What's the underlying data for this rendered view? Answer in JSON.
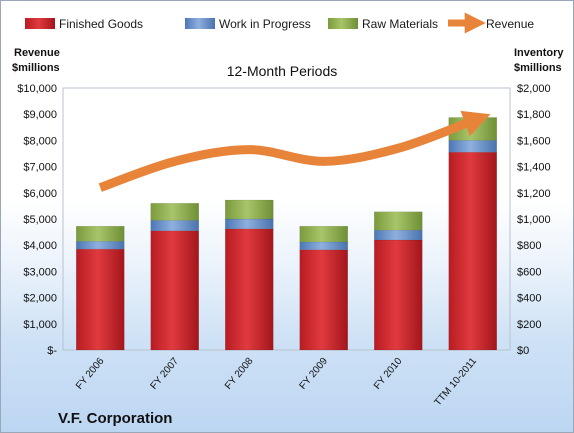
{
  "chart_data": {
    "type": "bar",
    "subtype": "stacked bar with line overlay",
    "title": "12-Month Periods",
    "company": "V.F. Corporation",
    "categories": [
      "FY 2006",
      "FY 2007",
      "FY 2008",
      "FY 2009",
      "FY 2010",
      "TTM 10-2011"
    ],
    "series": [
      {
        "name": "Finished Goods",
        "axis": "right",
        "color": "#c8242a",
        "values": [
          770,
          910,
          925,
          765,
          840,
          1510
        ]
      },
      {
        "name": "Work in Progress",
        "axis": "right",
        "color": "#5b87c6",
        "values": [
          60,
          80,
          75,
          60,
          75,
          90
        ]
      },
      {
        "name": "Raw Materials",
        "axis": "right",
        "color": "#8aab4a",
        "values": [
          115,
          130,
          145,
          120,
          140,
          175
        ]
      },
      {
        "name": "Revenue",
        "type": "line",
        "axis": "left",
        "color": "#e8833a",
        "values": [
          6200,
          7200,
          7650,
          7200,
          7700,
          8750
        ]
      }
    ],
    "left_axis": {
      "label_line1": "Revenue",
      "label_line2": "$millions",
      "ylim": [
        0,
        10000
      ],
      "ticks": [
        "$-",
        "$1,000",
        "$2,000",
        "$3,000",
        "$4,000",
        "$5,000",
        "$6,000",
        "$7,000",
        "$8,000",
        "$9,000",
        "$10,000"
      ]
    },
    "right_axis": {
      "label_line1": "Inventory",
      "label_line2": "$millions",
      "ylim": [
        0,
        2000
      ],
      "ticks": [
        "$0",
        "$200",
        "$400",
        "$600",
        "$800",
        "$1,000",
        "$1,200",
        "$1,400",
        "$1,600",
        "$1,800",
        "$2,000"
      ]
    },
    "legend_position": "top",
    "grid": false
  }
}
